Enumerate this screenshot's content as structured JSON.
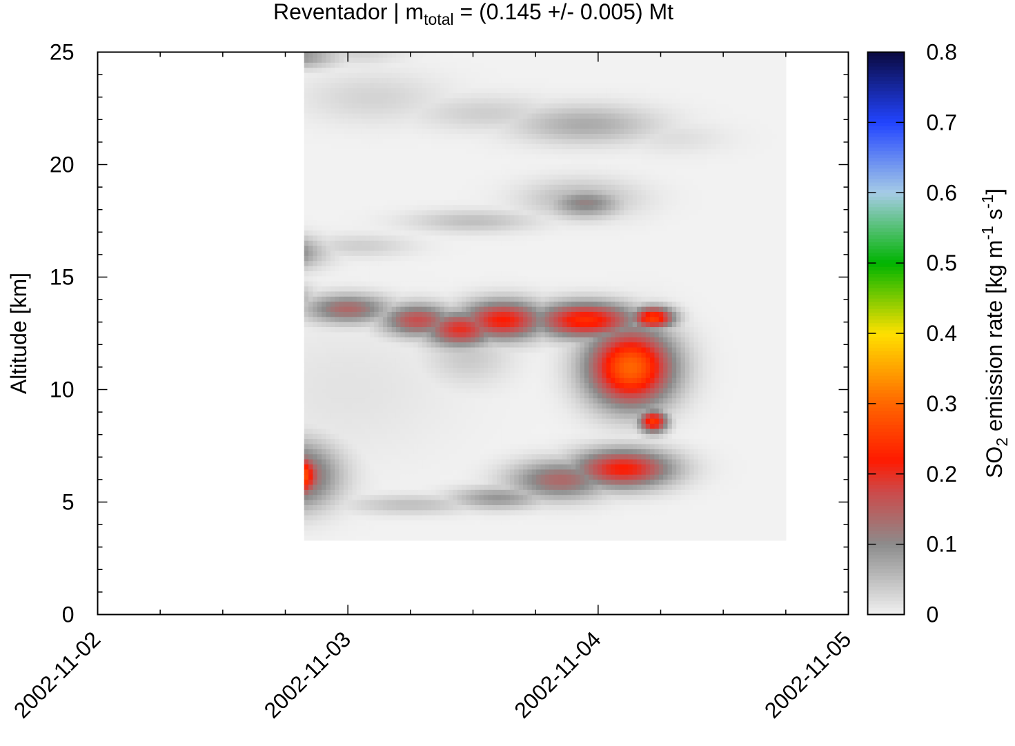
{
  "chart_data": {
    "type": "heatmap",
    "title_main": "Reventador | m",
    "title_sub": "total",
    "title_rest": " = (0.145 +/- 0.005) Mt",
    "ylabel": "Altitude [km]",
    "colorbar_label_a": "SO",
    "colorbar_label_sub": "2",
    "colorbar_label_b": " emission rate [kg m",
    "colorbar_label_sup1": "-1",
    "colorbar_label_c": " s",
    "colorbar_label_sup2": "-1",
    "colorbar_label_d": "]",
    "x_ticks": [
      "2002-11-02",
      "2002-11-03",
      "2002-11-04",
      "2002-11-05"
    ],
    "xlim_days": [
      0,
      3
    ],
    "y_ticks": [
      0,
      5,
      10,
      15,
      20,
      25
    ],
    "ylim": [
      0,
      25
    ],
    "colorbar_ticks": [
      0,
      0.1,
      0.2,
      0.3,
      0.4,
      0.5,
      0.6,
      0.7,
      0.8
    ],
    "clim": [
      0,
      0.8
    ],
    "colormap": [
      [
        0.0,
        "#f2f2f2"
      ],
      [
        0.1,
        "#8c8c8c"
      ],
      [
        0.175,
        "#cc4a4a"
      ],
      [
        0.22,
        "#ff1a00"
      ],
      [
        0.3,
        "#ff6600"
      ],
      [
        0.4,
        "#ffe000"
      ],
      [
        0.5,
        "#00b400"
      ],
      [
        0.6,
        "#a6cce6"
      ],
      [
        0.7,
        "#2244ff"
      ],
      [
        0.8,
        "#0a0a40"
      ]
    ],
    "data_region": {
      "x_days": [
        0.825,
        2.75
      ],
      "y_km": [
        3.3,
        25
      ]
    },
    "features": [
      {
        "x": 0.78,
        "y": 6.2,
        "sx": 0.07,
        "sy": 0.65,
        "v": 0.36
      },
      {
        "x": 0.78,
        "y": 6.2,
        "sx": 0.12,
        "sy": 1.0,
        "v": 0.18
      },
      {
        "x": 0.79,
        "y": 5.5,
        "sx": 0.03,
        "sy": 0.3,
        "v": 0.12
      },
      {
        "x": 0.66,
        "y": 16.1,
        "sx": 0.08,
        "sy": 0.28,
        "v": 0.5
      },
      {
        "x": 0.66,
        "y": 16.1,
        "sx": 0.13,
        "sy": 0.5,
        "v": 0.22
      },
      {
        "x": 0.73,
        "y": 14.0,
        "sx": 0.08,
        "sy": 0.5,
        "v": 0.12
      },
      {
        "x": 1.0,
        "y": 13.6,
        "sx": 0.12,
        "sy": 0.45,
        "v": 0.14
      },
      {
        "x": 1.28,
        "y": 13.1,
        "sx": 0.1,
        "sy": 0.5,
        "v": 0.17
      },
      {
        "x": 1.45,
        "y": 12.7,
        "sx": 0.1,
        "sy": 0.55,
        "v": 0.2
      },
      {
        "x": 1.62,
        "y": 13.1,
        "sx": 0.12,
        "sy": 0.6,
        "v": 0.22
      },
      {
        "x": 1.95,
        "y": 13.1,
        "sx": 0.14,
        "sy": 0.55,
        "v": 0.24
      },
      {
        "x": 2.22,
        "y": 13.2,
        "sx": 0.06,
        "sy": 0.35,
        "v": 0.26
      },
      {
        "x": 2.13,
        "y": 11.0,
        "sx": 0.12,
        "sy": 1.2,
        "v": 0.3
      },
      {
        "x": 2.13,
        "y": 11.4,
        "sx": 0.05,
        "sy": 0.45,
        "v": 0.2
      },
      {
        "x": 2.16,
        "y": 10.5,
        "sx": 0.04,
        "sy": 0.4,
        "v": 0.18
      },
      {
        "x": 2.22,
        "y": 8.6,
        "sx": 0.04,
        "sy": 0.35,
        "v": 0.25
      },
      {
        "x": 2.02,
        "y": 11.8,
        "sx": 0.07,
        "sy": 0.6,
        "v": 0.12
      },
      {
        "x": 2.1,
        "y": 6.5,
        "sx": 0.14,
        "sy": 0.6,
        "v": 0.22
      },
      {
        "x": 1.85,
        "y": 6.0,
        "sx": 0.14,
        "sy": 0.6,
        "v": 0.14
      },
      {
        "x": 1.6,
        "y": 5.2,
        "sx": 0.13,
        "sy": 0.35,
        "v": 0.09
      },
      {
        "x": 1.25,
        "y": 4.9,
        "sx": 0.18,
        "sy": 0.3,
        "v": 0.05
      },
      {
        "x": 0.85,
        "y": 6.0,
        "sx": 0.12,
        "sy": 1.0,
        "v": 0.05
      },
      {
        "x": 1.0,
        "y": 10.0,
        "sx": 0.3,
        "sy": 2.2,
        "v": 0.015
      },
      {
        "x": 1.48,
        "y": 11.5,
        "sx": 0.12,
        "sy": 0.9,
        "v": 0.04
      },
      {
        "x": 1.95,
        "y": 18.3,
        "sx": 0.1,
        "sy": 0.45,
        "v": 0.11
      },
      {
        "x": 1.93,
        "y": 18.5,
        "sx": 0.16,
        "sy": 0.6,
        "v": 0.06
      },
      {
        "x": 1.5,
        "y": 17.5,
        "sx": 0.18,
        "sy": 0.35,
        "v": 0.05
      },
      {
        "x": 1.05,
        "y": 16.4,
        "sx": 0.15,
        "sy": 0.35,
        "v": 0.035
      },
      {
        "x": 1.95,
        "y": 21.8,
        "sx": 0.2,
        "sy": 0.6,
        "v": 0.07
      },
      {
        "x": 1.55,
        "y": 22.3,
        "sx": 0.2,
        "sy": 0.55,
        "v": 0.035
      },
      {
        "x": 1.1,
        "y": 23.0,
        "sx": 0.2,
        "sy": 0.8,
        "v": 0.03
      },
      {
        "x": 2.3,
        "y": 21.2,
        "sx": 0.15,
        "sy": 0.5,
        "v": 0.02
      },
      {
        "x": 0.78,
        "y": 24.8,
        "sx": 0.12,
        "sy": 0.35,
        "v": 0.1
      },
      {
        "x": 1.05,
        "y": 25.0,
        "sx": 0.12,
        "sy": 0.4,
        "v": 0.03
      },
      {
        "x": 0.78,
        "y": 14.2,
        "sx": 0.05,
        "sy": 0.25,
        "v": 0.08
      }
    ]
  }
}
